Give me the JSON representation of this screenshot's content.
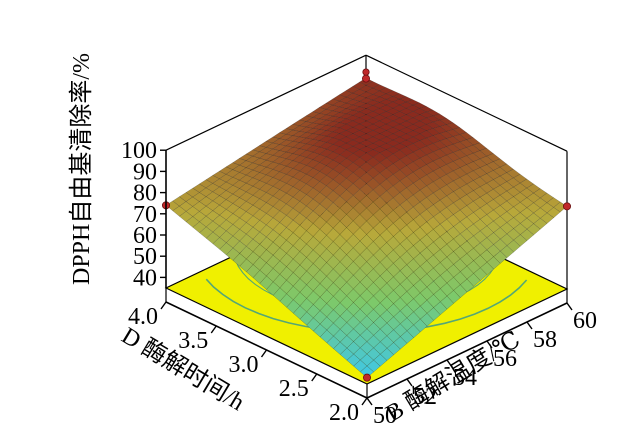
{
  "chart_data": {
    "type": "surface3d",
    "title": "",
    "zlabel": "DPPH自由基清除率/%",
    "xlabel": "D 酶解时间/h",
    "ylabel": "B 酶解温度/℃",
    "x_ticks": [
      "4.0",
      "3.5",
      "3.0",
      "2.5",
      "2.0"
    ],
    "x_range": [
      2.0,
      4.0
    ],
    "y_ticks": [
      "50",
      "52",
      "54",
      "56",
      "58",
      "60"
    ],
    "y_range": [
      50,
      60
    ],
    "z_ticks": [
      "40",
      "50",
      "60",
      "70",
      "80",
      "90",
      "100"
    ],
    "z_range": [
      35,
      100
    ],
    "surface": {
      "description_model": "quadratic response surface",
      "corners": [
        {
          "x": 4.0,
          "y": 50,
          "z": 74
        },
        {
          "x": 4.0,
          "y": 60,
          "z": 89
        },
        {
          "x": 2.0,
          "y": 60,
          "z": 74
        },
        {
          "x": 2.0,
          "y": 50,
          "z": 38
        }
      ],
      "peak": {
        "x": 3.4,
        "y": 57,
        "z": 90
      }
    },
    "design_points": [
      {
        "x": 4.0,
        "y": 50,
        "z": 74
      },
      {
        "x": 4.0,
        "y": 60,
        "z": 89
      },
      {
        "x": 2.0,
        "y": 60,
        "z": 74
      },
      {
        "x": 2.0,
        "y": 50,
        "z": 38
      }
    ],
    "colormap": [
      "#3ec8e8",
      "#7dc96a",
      "#b8a83a",
      "#8a2a1e"
    ],
    "floor_color": "#f0f000",
    "contour_color": "#3a9a8a"
  }
}
